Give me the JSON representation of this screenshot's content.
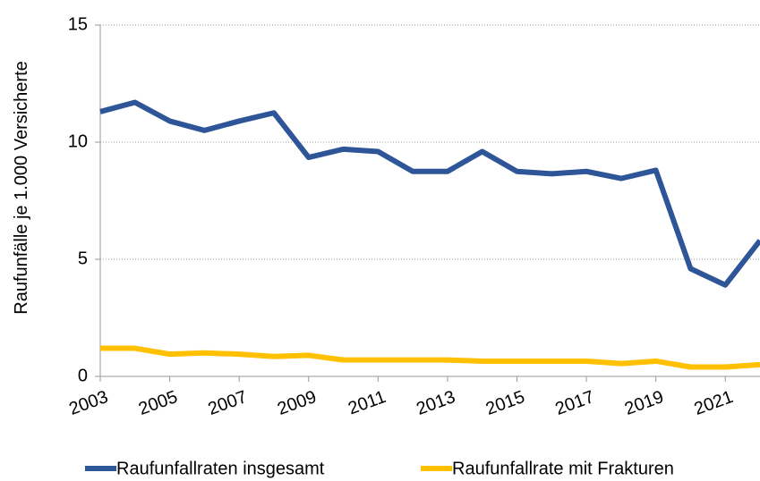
{
  "chart_data": {
    "type": "line",
    "y_label": "Raufunfälle je 1.000 Versicherte",
    "x": [
      2003,
      2004,
      2005,
      2006,
      2007,
      2008,
      2009,
      2010,
      2011,
      2012,
      2013,
      2014,
      2015,
      2016,
      2017,
      2018,
      2019,
      2020,
      2021,
      2022
    ],
    "xlim": [
      2003,
      2022
    ],
    "xticks": [
      2003,
      2005,
      2007,
      2009,
      2011,
      2013,
      2015,
      2017,
      2019,
      2021
    ],
    "ylim": [
      0,
      15
    ],
    "yticks": [
      0,
      5,
      10,
      15
    ],
    "grid": true,
    "legend": "bottom",
    "series": [
      {
        "name": "Raufunfallraten insgesamt",
        "color": "#2e5597",
        "values": [
          11.3,
          11.7,
          10.9,
          10.5,
          10.9,
          11.25,
          9.35,
          9.7,
          9.6,
          8.75,
          8.75,
          9.6,
          8.75,
          8.65,
          8.75,
          8.45,
          8.8,
          4.6,
          3.9,
          5.8
        ]
      },
      {
        "name": "Raufunfallrate mit Frakturen",
        "color": "#ffc000",
        "values": [
          1.2,
          1.2,
          0.95,
          1.0,
          0.95,
          0.85,
          0.9,
          0.7,
          0.7,
          0.7,
          0.7,
          0.65,
          0.65,
          0.65,
          0.65,
          0.55,
          0.65,
          0.4,
          0.4,
          0.5
        ]
      }
    ]
  }
}
